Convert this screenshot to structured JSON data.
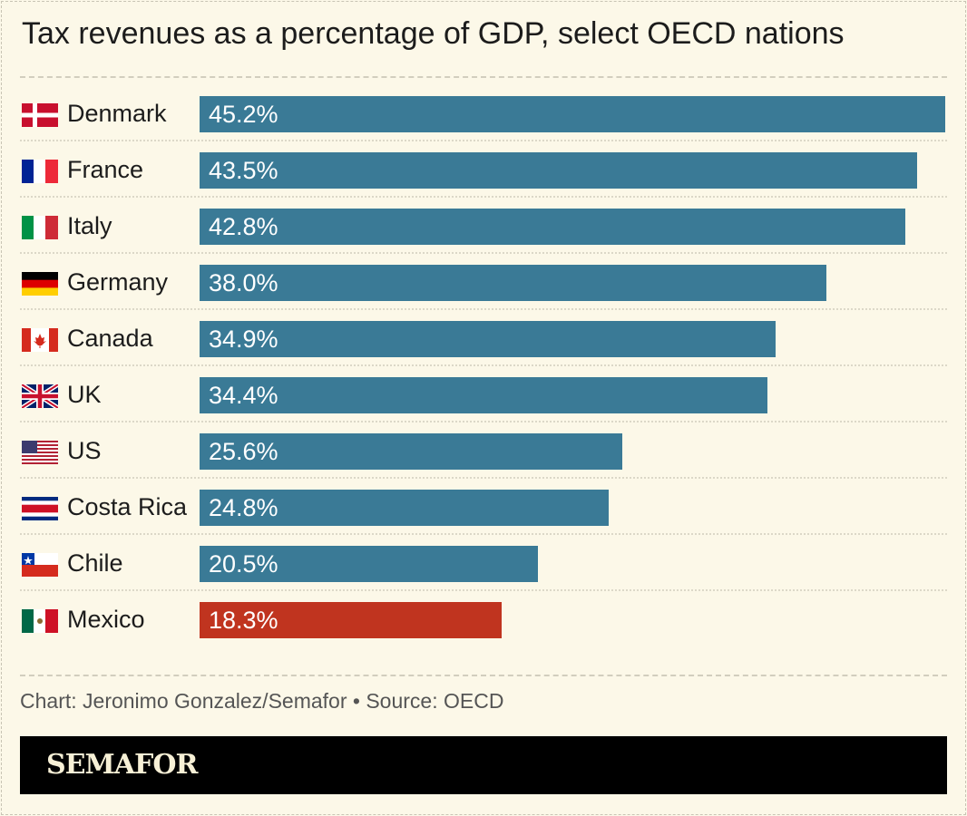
{
  "title": "Tax revenues as a percentage of GDP, select OECD nations",
  "credit": "Chart: Jeronimo Gonzalez/Semafor • Source: OECD",
  "logo": "SEMAFOR",
  "colors": {
    "bar": "#3a7a96",
    "highlight": "#c0341f",
    "background": "#fcf8e8"
  },
  "chart_data": {
    "type": "bar",
    "orientation": "horizontal",
    "title": "Tax revenues as a percentage of GDP, select OECD nations",
    "categories": [
      "Denmark",
      "France",
      "Italy",
      "Germany",
      "Canada",
      "UK",
      "US",
      "Costa Rica",
      "Chile",
      "Mexico"
    ],
    "values": [
      45.2,
      43.5,
      42.8,
      38.0,
      34.9,
      34.4,
      25.6,
      24.8,
      20.5,
      18.3
    ],
    "labels": [
      "45.2%",
      "43.5%",
      "42.8%",
      "38.0%",
      "34.9%",
      "34.4%",
      "25.6%",
      "24.8%",
      "20.5%",
      "18.3%"
    ],
    "flags": [
      "denmark-flag",
      "france-flag",
      "italy-flag",
      "germany-flag",
      "canada-flag",
      "uk-flag",
      "us-flag",
      "costa-rica-flag",
      "chile-flag",
      "mexico-flag"
    ],
    "highlighted": "Mexico",
    "grid": false,
    "xlim": [
      0,
      45.2
    ]
  }
}
